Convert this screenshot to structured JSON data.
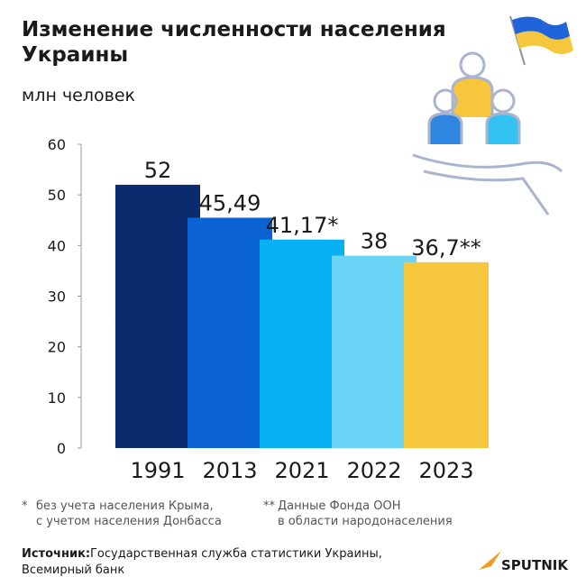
{
  "chart_data": {
    "type": "bar",
    "title_lines": [
      "Изменение численности населения",
      "Украины"
    ],
    "subtitle": "млн человек",
    "categories": [
      "1991",
      "2013",
      "2021",
      "2022",
      "2023"
    ],
    "values": [
      52,
      45.49,
      41.17,
      38,
      36.7
    ],
    "value_labels": [
      "52",
      "45,49",
      "41,17*",
      "38",
      "36,7**"
    ],
    "colors": [
      "#0b2b6e",
      "#0b62d3",
      "#05b1f1",
      "#6bd3f6",
      "#f6c63c"
    ],
    "ylim": [
      0,
      60
    ],
    "yticks": [
      0,
      10,
      20,
      30,
      40,
      50,
      60
    ],
    "footnotes": [
      {
        "marker": "*",
        "lines": [
          "без учета населения Крыма,",
          "с учетом населения Донбасса"
        ]
      },
      {
        "marker": "**",
        "lines": [
          "Данные Фонда ООН",
          "в области народонаселения"
        ]
      }
    ],
    "source_label": "Источник:",
    "source_lines": [
      "Государственная служба статистики Украины,",
      "Всемирный банк"
    ],
    "logo": "SPUTNIK"
  }
}
